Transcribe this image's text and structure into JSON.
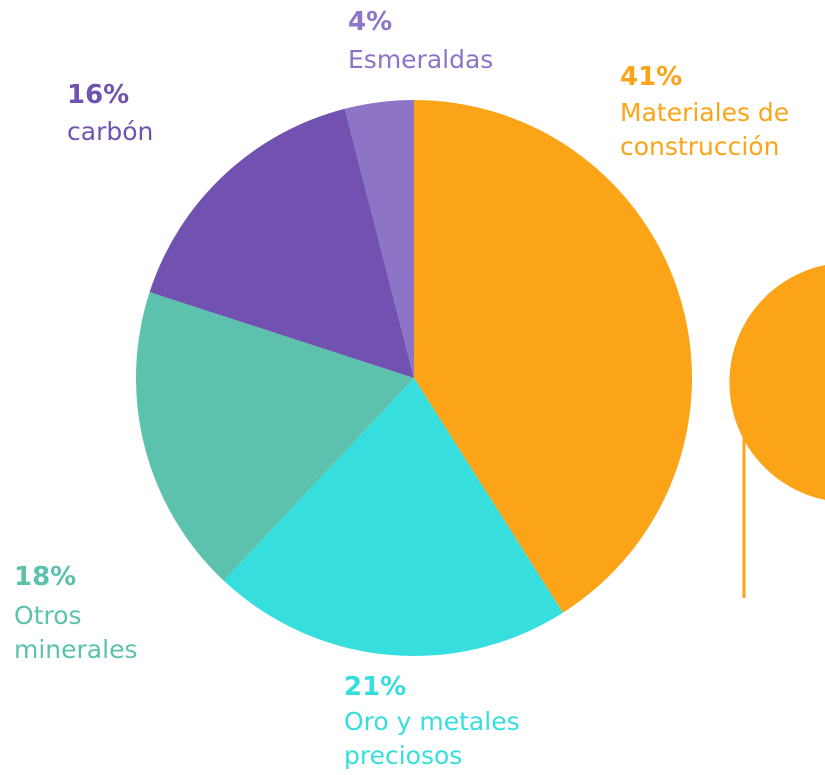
{
  "chart_data": {
    "type": "pie",
    "slices": [
      {
        "label": "Materiales de construcción",
        "display_label": "Materiales de\nconstrucción",
        "value": 41,
        "value_label": "41%",
        "color": "#FBA418"
      },
      {
        "label": "Oro y metales preciosos",
        "display_label": "Oro y metales\npreciosos",
        "value": 21,
        "value_label": "21%",
        "color": "#36DEDD"
      },
      {
        "label": "Otros minerales",
        "display_label": "Otros\nminerales",
        "value": 18,
        "value_label": "18%",
        "color": "#5CC1AD"
      },
      {
        "label": "carbón",
        "display_label": "carbón",
        "value": 16,
        "value_label": "16%",
        "color": "#7252B0"
      },
      {
        "label": "Esmeraldas",
        "display_label": "Esmeraldas",
        "value": 4,
        "value_label": "4%",
        "color": "#8D74C7"
      }
    ],
    "start": "12 o'clock",
    "direction": "clockwise",
    "accent_color": "#FBA418"
  }
}
